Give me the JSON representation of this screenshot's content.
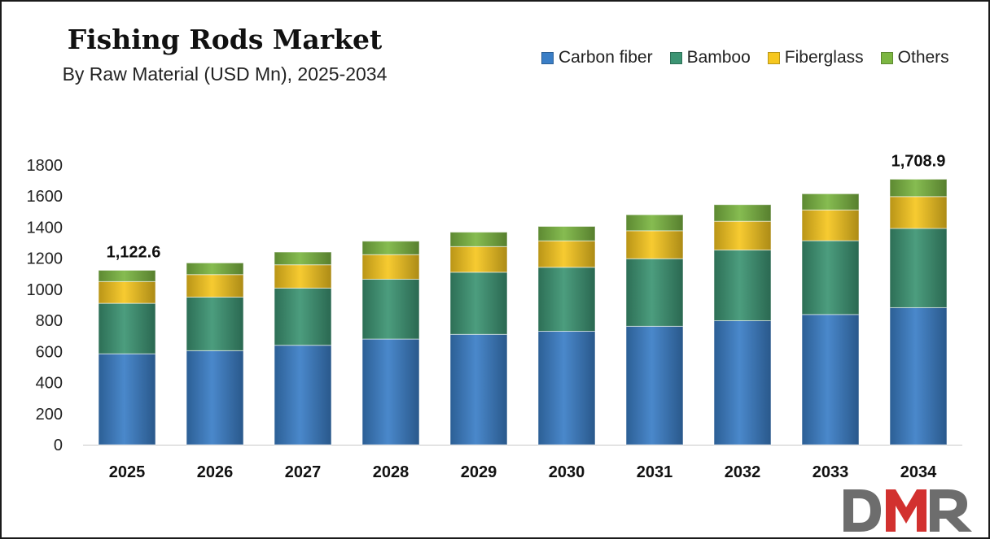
{
  "chart_data": {
    "type": "bar",
    "stacked": true,
    "title": "Fishing Rods Market",
    "subtitle": "By Raw Material (USD Mn), 2025-2034",
    "categories": [
      "2025",
      "2026",
      "2027",
      "2028",
      "2029",
      "2030",
      "2031",
      "2032",
      "2033",
      "2034"
    ],
    "series": [
      {
        "name": "Carbon fiber",
        "color": "#3a7ec6",
        "values": [
          585,
          605,
          640,
          680,
          710,
          730,
          762,
          798,
          838,
          882
        ]
      },
      {
        "name": "Bamboo",
        "color": "#3c9473",
        "values": [
          325,
          345,
          368,
          385,
          400,
          412,
          435,
          455,
          475,
          510
        ]
      },
      {
        "name": "Fiberglass",
        "color": "#f6c71f",
        "values": [
          140,
          145,
          150,
          158,
          165,
          170,
          180,
          185,
          198,
          205
        ]
      },
      {
        "name": "Others",
        "color": "#7cb642",
        "values": [
          72.6,
          75,
          82,
          87,
          93,
          93,
          103,
          107,
          104,
          111.9
        ]
      }
    ],
    "total_labels": {
      "2025": "1,122.6",
      "2034": "1,708.9"
    },
    "ylim": [
      0,
      1800
    ],
    "y_ticks": [
      0,
      200,
      400,
      600,
      800,
      1000,
      1200,
      1400,
      1600,
      1800
    ],
    "legend_position": "top-right",
    "grid": false
  },
  "logo": {
    "text": "DMR"
  }
}
